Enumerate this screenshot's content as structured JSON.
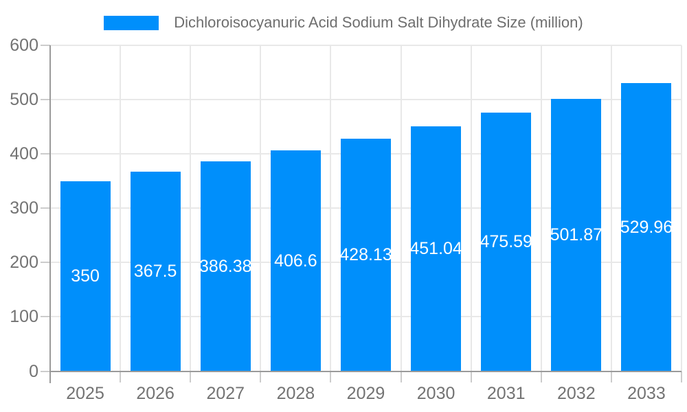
{
  "legend": {
    "label": "Dichloroisocyanuric Acid Sodium Salt Dihydrate Size (million)",
    "marker_color": "#008FFB"
  },
  "chart_data": {
    "type": "bar",
    "title": "Dichloroisocyanuric Acid Sodium Salt Dihydrate Size (million)",
    "categories": [
      "2025",
      "2026",
      "2027",
      "2028",
      "2029",
      "2030",
      "2031",
      "2032",
      "2033"
    ],
    "series": [
      {
        "name": "Dichloroisocyanuric Acid Sodium Salt Dihydrate Size (million)",
        "values": [
          350,
          367.5,
          386.38,
          406.6,
          428.13,
          451.04,
          475.59,
          501.87,
          529.96
        ]
      }
    ],
    "value_labels": [
      "350",
      "367.5",
      "386.38",
      "406.6",
      "428.13",
      "451.04",
      "475.59",
      "501.87",
      "529.96"
    ],
    "xlabel": "",
    "ylabel": "",
    "ylim": [
      0,
      600
    ],
    "yticks": [
      0,
      100,
      200,
      300,
      400,
      500,
      600
    ],
    "grid": true,
    "legend_position": "top",
    "value_label_position": "center-inside"
  },
  "colors": {
    "background": "#ffffff",
    "bar": "#008FFB",
    "axis_line": "#9a9a9a",
    "gridline": "#e8e8e8",
    "tick": "#cccccc",
    "axis_label_text": "#737373",
    "legend_text": "#6e6e6e",
    "value_label_text": "#ffffff"
  }
}
